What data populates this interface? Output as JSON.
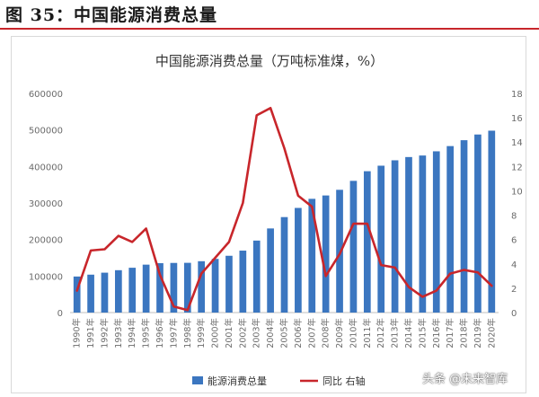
{
  "header": {
    "figure_title": "图 35：中国能源消费总量"
  },
  "watermark": "头条 @未来智库",
  "colors": {
    "bar": "#3b76c0",
    "line": "#c8262b",
    "rule": "#c8262b",
    "axis_text": "#6b6b6b"
  },
  "chart_data": {
    "type": "bar+line",
    "title": "中国能源消费总量（万吨标准煤，%）",
    "categories": [
      "1990年",
      "1991年",
      "1992年",
      "1993年",
      "1994年",
      "1995年",
      "1996年",
      "1997年",
      "1998年",
      "1999年",
      "2000年",
      "2001年",
      "2002年",
      "2003年",
      "2004年",
      "2005年",
      "2006年",
      "2007年",
      "2008年",
      "2009年",
      "2010年",
      "2011年",
      "2012年",
      "2013年",
      "2014年",
      "2015年",
      "2016年",
      "2017年",
      "2018年",
      "2019年",
      "2020年"
    ],
    "series": [
      {
        "name": "能源消费总量",
        "kind": "bar",
        "axis": "left",
        "values": [
          98700,
          103800,
          109200,
          116000,
          122700,
          131200,
          135200,
          135900,
          136200,
          140600,
          147000,
          155500,
          169600,
          197100,
          230300,
          261400,
          286500,
          311400,
          320600,
          336100,
          360600,
          387000,
          402100,
          416900,
          425800,
          430000,
          441500,
          455800,
          471900,
          487500,
          498000
        ]
      },
      {
        "name": "同比 右轴",
        "kind": "line",
        "axis": "right",
        "values": [
          1.8,
          5.1,
          5.2,
          6.3,
          5.8,
          6.9,
          3.1,
          0.5,
          0.2,
          3.2,
          4.5,
          5.8,
          9.0,
          16.2,
          16.8,
          13.5,
          9.6,
          8.7,
          3.0,
          4.8,
          7.3,
          7.3,
          3.9,
          3.7,
          2.1,
          1.3,
          1.8,
          3.2,
          3.5,
          3.3,
          2.2
        ]
      }
    ],
    "y_left": {
      "min": 0,
      "max": 600000,
      "ticks": [
        "0",
        "100000",
        "200000",
        "300000",
        "400000",
        "500000",
        "600000"
      ]
    },
    "y_right": {
      "min": 0,
      "max": 18,
      "ticks": [
        "0",
        "2",
        "4",
        "6",
        "8",
        "10",
        "12",
        "14",
        "16",
        "18"
      ]
    },
    "grid": false,
    "legend": {
      "position": "bottom",
      "items": [
        "能源消费总量",
        "同比 右轴"
      ]
    }
  }
}
